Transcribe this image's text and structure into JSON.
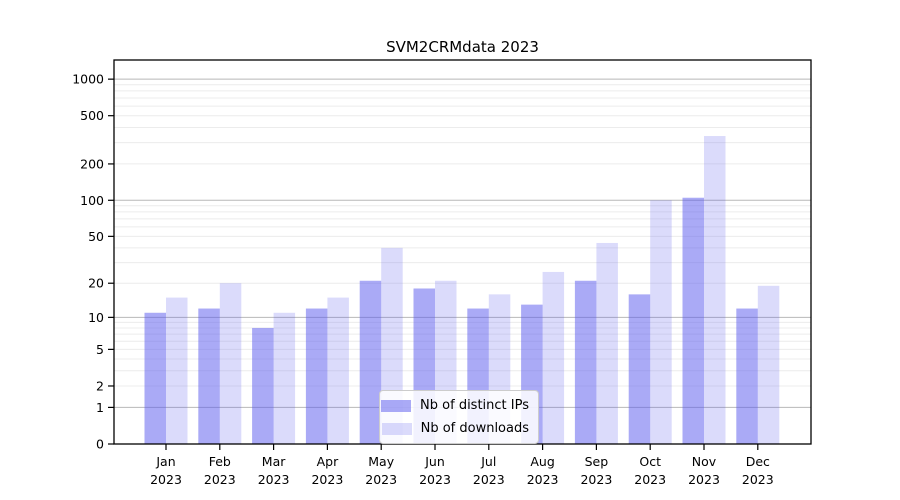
{
  "chart_data": {
    "type": "bar",
    "title": "SVM2CRMdata 2023",
    "categories": [
      "Jan",
      "Feb",
      "Mar",
      "Apr",
      "May",
      "Jun",
      "Jul",
      "Aug",
      "Sep",
      "Oct",
      "Nov",
      "Dec"
    ],
    "year_label": "2023",
    "series": [
      {
        "name": "Nb of distinct IPs",
        "color": "rgba(85,85,238,0.5)",
        "values": [
          11,
          12,
          8,
          12,
          21,
          18,
          12,
          13,
          21,
          16,
          105,
          12
        ]
      },
      {
        "name": "Nb of downloads",
        "color": "rgba(85,85,238,0.21)",
        "values": [
          15,
          20,
          11,
          15,
          40,
          21,
          16,
          25,
          44,
          100,
          340,
          19
        ]
      }
    ],
    "yticks": [
      0,
      1,
      2,
      5,
      10,
      20,
      50,
      100,
      200,
      500,
      1000
    ],
    "scale": "log(1+x)",
    "ylim": [
      0,
      1400
    ],
    "grid": "horizontal major+minor",
    "legend_position": "lower center",
    "colors": {
      "major_grid": "#b8b8b8",
      "minor_grid": "#ececec",
      "axis": "#000000"
    }
  }
}
